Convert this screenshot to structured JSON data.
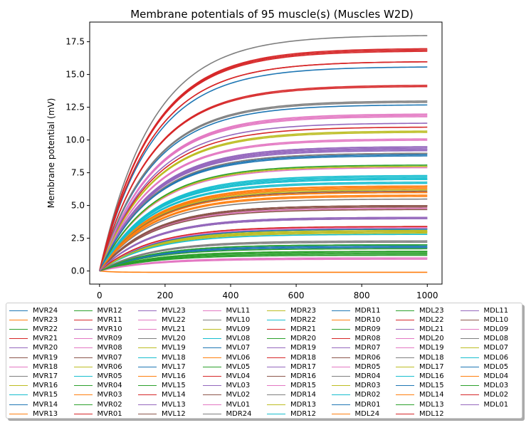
{
  "chart_data": {
    "type": "line",
    "title": "Membrane potentials of 95 muscle(s) (Muscles W2D)",
    "xlabel": "",
    "ylabel": "Membrane potential (mV)",
    "xlim": [
      -30,
      1045
    ],
    "ylim": [
      -1.0,
      19.0
    ],
    "xticks": [
      "0",
      "200",
      "400",
      "600",
      "800",
      "1000"
    ],
    "xtick_values": [
      0,
      200,
      400,
      600,
      800,
      1000
    ],
    "yticks": [
      "0.0",
      "2.5",
      "5.0",
      "7.5",
      "10.0",
      "12.5",
      "15.0",
      "17.5"
    ],
    "ytick_values": [
      0,
      2.5,
      5,
      7.5,
      10,
      12.5,
      15,
      17.5
    ],
    "x_range": [
      0,
      1000
    ],
    "time_constant": 160,
    "grid": false,
    "legend_placement": "below",
    "legend_columns": 8,
    "series": [
      {
        "name": "MVR24",
        "final": 15.6,
        "color": "#1f77b4"
      },
      {
        "name": "MVR23",
        "final": 6.5,
        "color": "#ff7f0e"
      },
      {
        "name": "MVR22",
        "final": 1.5,
        "color": "#2ca02c"
      },
      {
        "name": "MVR21",
        "final": 16.9,
        "color": "#d62728"
      },
      {
        "name": "MVR20",
        "final": 9.5,
        "color": "#9467bd"
      },
      {
        "name": "MVR19",
        "final": 5.0,
        "color": "#8c564b"
      },
      {
        "name": "MVR18",
        "final": 11.8,
        "color": "#e377c2"
      },
      {
        "name": "MVR17",
        "final": 13.0,
        "color": "#7f7f7f"
      },
      {
        "name": "MVR16",
        "final": 3.0,
        "color": "#bcbd22"
      },
      {
        "name": "MVR15",
        "final": 7.2,
        "color": "#17becf"
      },
      {
        "name": "MVR14",
        "final": 1.8,
        "color": "#1f77b4"
      },
      {
        "name": "MVR13",
        "final": 6.3,
        "color": "#ff7f0e"
      },
      {
        "name": "MVR12",
        "final": 8.0,
        "color": "#2ca02c"
      },
      {
        "name": "MVR11",
        "final": 14.2,
        "color": "#d62728"
      },
      {
        "name": "MVR10",
        "final": 4.0,
        "color": "#9467bd"
      },
      {
        "name": "MVR09",
        "final": 10.0,
        "color": "#e377c2"
      },
      {
        "name": "MVR08",
        "final": 1.0,
        "color": "#e377c2"
      },
      {
        "name": "MVR07",
        "final": 9.0,
        "color": "#8c564b"
      },
      {
        "name": "MVR06",
        "final": 10.7,
        "color": "#bcbd22"
      },
      {
        "name": "MVR05",
        "final": 6.8,
        "color": "#17becf"
      },
      {
        "name": "MVR04",
        "final": 3.2,
        "color": "#2ca02c"
      },
      {
        "name": "MVR03",
        "final": 5.8,
        "color": "#ff7f0e"
      },
      {
        "name": "MVR02",
        "final": 2.0,
        "color": "#2ca02c"
      },
      {
        "name": "MVR01",
        "final": 16.0,
        "color": "#d62728"
      },
      {
        "name": "MVL23",
        "final": 9.3,
        "color": "#9467bd"
      },
      {
        "name": "MVL22",
        "final": 4.8,
        "color": "#e377c2"
      },
      {
        "name": "MVL21",
        "final": 3.3,
        "color": "#e377c2"
      },
      {
        "name": "MVL20",
        "final": 2.2,
        "color": "#7f7f7f"
      },
      {
        "name": "MVL19",
        "final": 3.1,
        "color": "#bcbd22"
      },
      {
        "name": "MVL18",
        "final": 7.0,
        "color": "#17becf"
      },
      {
        "name": "MVL17",
        "final": 8.9,
        "color": "#1f77b4"
      },
      {
        "name": "MVL16",
        "final": 6.0,
        "color": "#ff7f0e"
      },
      {
        "name": "MVL15",
        "final": 1.3,
        "color": "#2ca02c"
      },
      {
        "name": "MVL14",
        "final": 3.4,
        "color": "#d62728"
      },
      {
        "name": "MVL13",
        "final": 4.1,
        "color": "#9467bd"
      },
      {
        "name": "MVL12",
        "final": 5.0,
        "color": "#8c564b"
      },
      {
        "name": "MVL11",
        "final": 7.9,
        "color": "#e377c2"
      },
      {
        "name": "MVL10",
        "final": 5.5,
        "color": "#7f7f7f"
      },
      {
        "name": "MVL09",
        "final": 2.9,
        "color": "#bcbd22"
      },
      {
        "name": "MVL08",
        "final": 2.8,
        "color": "#17becf"
      },
      {
        "name": "MVL07",
        "final": 1.9,
        "color": "#1f77b4"
      },
      {
        "name": "MVL06",
        "final": 6.4,
        "color": "#ff7f0e"
      },
      {
        "name": "MVL05",
        "final": 1.7,
        "color": "#2ca02c"
      },
      {
        "name": "MVL04",
        "final": 11.0,
        "color": "#d62728"
      },
      {
        "name": "MVL03",
        "final": 9.4,
        "color": "#9467bd"
      },
      {
        "name": "MVL02",
        "final": 4.9,
        "color": "#8c564b"
      },
      {
        "name": "MVL01",
        "final": 0.9,
        "color": "#e377c2"
      },
      {
        "name": "MDR24",
        "final": 18.0,
        "color": "#7f7f7f"
      },
      {
        "name": "MDR23",
        "final": 6.2,
        "color": "#bcbd22"
      },
      {
        "name": "MDR22",
        "final": 7.3,
        "color": "#17becf"
      },
      {
        "name": "MDR21",
        "final": 17.0,
        "color": "#d62728"
      },
      {
        "name": "MDR20",
        "final": 1.2,
        "color": "#2ca02c"
      },
      {
        "name": "MDR19",
        "final": 11.3,
        "color": "#9467bd"
      },
      {
        "name": "MDR18",
        "final": 16.8,
        "color": "#d62728"
      },
      {
        "name": "MDR17",
        "final": 9.2,
        "color": "#9467bd"
      },
      {
        "name": "MDR16",
        "final": 6.1,
        "color": "#8c564b"
      },
      {
        "name": "MDR15",
        "final": 12.0,
        "color": "#e377c2"
      },
      {
        "name": "MDR14",
        "final": 4.0,
        "color": "#7f7f7f"
      },
      {
        "name": "MDR13",
        "final": 8.0,
        "color": "#bcbd22"
      },
      {
        "name": "MDR12",
        "final": 2.0,
        "color": "#17becf"
      },
      {
        "name": "MDR11",
        "final": 12.7,
        "color": "#1f77b4"
      },
      {
        "name": "MDR10",
        "final": 6.5,
        "color": "#ff7f0e"
      },
      {
        "name": "MDR09",
        "final": 1.5,
        "color": "#2ca02c"
      },
      {
        "name": "MDR08",
        "final": 16.9,
        "color": "#d62728"
      },
      {
        "name": "MDR07",
        "final": 9.5,
        "color": "#9467bd"
      },
      {
        "name": "MDR06",
        "final": 5.0,
        "color": "#8c564b"
      },
      {
        "name": "MDR05",
        "final": 11.9,
        "color": "#e377c2"
      },
      {
        "name": "MDR04",
        "final": 12.9,
        "color": "#7f7f7f"
      },
      {
        "name": "MDR03",
        "final": 3.0,
        "color": "#bcbd22"
      },
      {
        "name": "MDR02",
        "final": 7.1,
        "color": "#17becf"
      },
      {
        "name": "MDR01",
        "final": 1.8,
        "color": "#1f77b4"
      },
      {
        "name": "MDL24",
        "final": -0.1,
        "color": "#ff7f0e"
      },
      {
        "name": "MDL23",
        "final": 8.1,
        "color": "#2ca02c"
      },
      {
        "name": "MDL22",
        "final": 14.1,
        "color": "#d62728"
      },
      {
        "name": "MDL21",
        "final": 4.0,
        "color": "#9467bd"
      },
      {
        "name": "MDL20",
        "final": 10.1,
        "color": "#e377c2"
      },
      {
        "name": "MDL19",
        "final": 1.0,
        "color": "#e377c2"
      },
      {
        "name": "MDL18",
        "final": 9.0,
        "color": "#7f7f7f"
      },
      {
        "name": "MDL17",
        "final": 10.6,
        "color": "#bcbd22"
      },
      {
        "name": "MDL16",
        "final": 6.7,
        "color": "#17becf"
      },
      {
        "name": "MDL15",
        "final": 3.2,
        "color": "#1f77b4"
      },
      {
        "name": "MDL14",
        "final": 5.7,
        "color": "#ff7f0e"
      },
      {
        "name": "MDL13",
        "final": 2.0,
        "color": "#2ca02c"
      },
      {
        "name": "MDL12",
        "final": 16.0,
        "color": "#d62728"
      },
      {
        "name": "MDL11",
        "final": 9.3,
        "color": "#9467bd"
      },
      {
        "name": "MDL10",
        "final": 4.7,
        "color": "#8c564b"
      },
      {
        "name": "MDL09",
        "final": 3.3,
        "color": "#e377c2"
      },
      {
        "name": "MDL08",
        "final": 2.3,
        "color": "#7f7f7f"
      },
      {
        "name": "MDL07",
        "final": 3.0,
        "color": "#bcbd22"
      },
      {
        "name": "MDL06",
        "final": 7.0,
        "color": "#17becf"
      },
      {
        "name": "MDL05",
        "final": 8.8,
        "color": "#1f77b4"
      },
      {
        "name": "MDL04",
        "final": 6.0,
        "color": "#ff7f0e"
      },
      {
        "name": "MDL03",
        "final": 1.4,
        "color": "#2ca02c"
      },
      {
        "name": "MDL02",
        "final": 3.4,
        "color": "#d62728"
      },
      {
        "name": "MDL01",
        "final": 4.1,
        "color": "#9467bd"
      }
    ]
  }
}
